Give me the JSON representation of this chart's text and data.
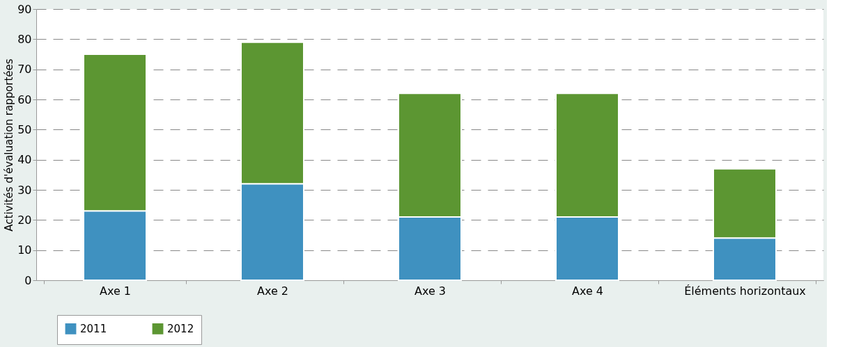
{
  "chart_data": {
    "type": "bar",
    "stacked": true,
    "ylabel": "Activités d'évaluation rapportées",
    "categories": [
      "Axe 1",
      "Axe 2",
      "Axe 3",
      "Axe 4",
      "Éléments horizontaux"
    ],
    "series": [
      {
        "name": "2011",
        "color": "#3f91c0",
        "values": [
          23,
          32,
          21,
          21,
          14
        ]
      },
      {
        "name": "2012",
        "color": "#5c9632",
        "values": [
          52,
          47,
          41,
          41,
          23
        ]
      }
    ],
    "ylim": [
      0,
      90
    ],
    "yticks": [
      0,
      10,
      20,
      30,
      40,
      50,
      60,
      70,
      80,
      90
    ],
    "grid": "y",
    "legend": "bottom left"
  }
}
